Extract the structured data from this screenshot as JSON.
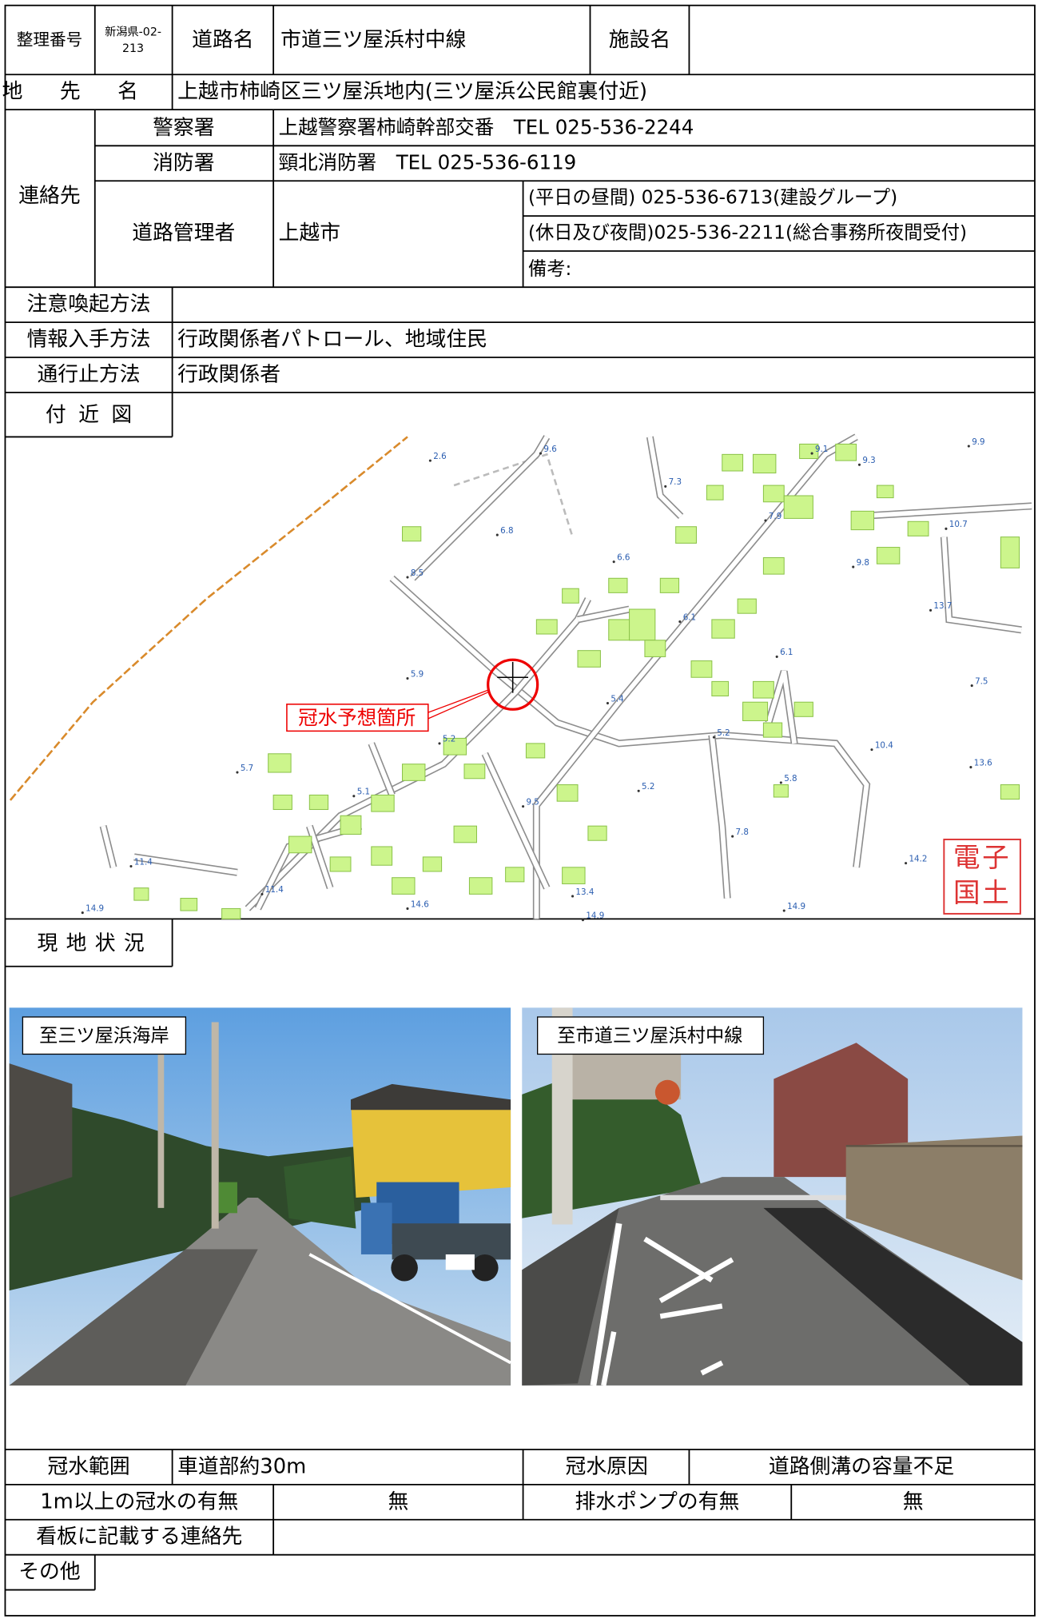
{
  "header": {
    "number_label": "整理番号",
    "number": [
      "新潟県-02-",
      "213"
    ],
    "road_label": "道路名",
    "road": "市道三ツ屋浜村中線",
    "facility_label": "施設名"
  },
  "location": {
    "label": "地先名",
    "value": "上越市柿崎区三ツ屋浜地内(三ツ屋浜公民館裏付近)"
  },
  "contact": {
    "label": "連絡先",
    "police": {
      "label": "警察署",
      "value": "上越警察署柿崎幹部交番　TEL 025-536-2244"
    },
    "fire": {
      "label": "消防署",
      "value": "頸北消防署　TEL 025-536-6119"
    },
    "road_admin": {
      "label": "道路管理者",
      "name": "上越市",
      "daytime": "(平日の昼間) 025-536-6713(建設グループ)",
      "night": "(休日及び夜間)025-536-2211(総合事務所夜間受付)",
      "note": "備考:"
    }
  },
  "rows": {
    "alert": {
      "label": "注意喚起方法"
    },
    "info": {
      "label": "情報入手方法",
      "value": "行政関係者パトロール、地域住民"
    },
    "closure": {
      "label": "通行止方法",
      "value": "行政関係者"
    }
  },
  "map": {
    "label": "付近図",
    "marker": "冠水予想箇所",
    "logo": [
      "電子",
      "国土"
    ],
    "spot_heights": [
      2.6,
      9.6,
      9.1,
      9.9,
      9.3,
      7.3,
      6.8,
      6.6,
      7.9,
      10.7,
      9.8,
      8.5,
      13.7,
      6.1,
      6.1,
      5.9,
      7.5,
      5.4,
      5.2,
      5.2,
      10.4,
      5.7,
      13.6,
      5.1,
      9.5,
      5.8,
      5.2,
      7.8,
      11.4,
      11.4,
      14.2,
      14.9,
      14.6,
      13.4,
      14.9,
      14.9
    ]
  },
  "site": {
    "label": "現地状況",
    "photos": [
      {
        "caption": "至三ツ屋浜海岸"
      },
      {
        "caption": "至市道三ツ屋浜村中線"
      }
    ]
  },
  "flood": {
    "range_label": "冠水範囲",
    "range": "車道部約30m",
    "cause_label": "冠水原因",
    "cause": "道路側溝の容量不足",
    "deep_label": "1m以上の冠水の有無",
    "deep": "無",
    "pump_label": "排水ポンプの有無",
    "pump": "無"
  },
  "sign": {
    "label": "看板に記載する連絡先"
  },
  "other": {
    "label": "その他"
  }
}
